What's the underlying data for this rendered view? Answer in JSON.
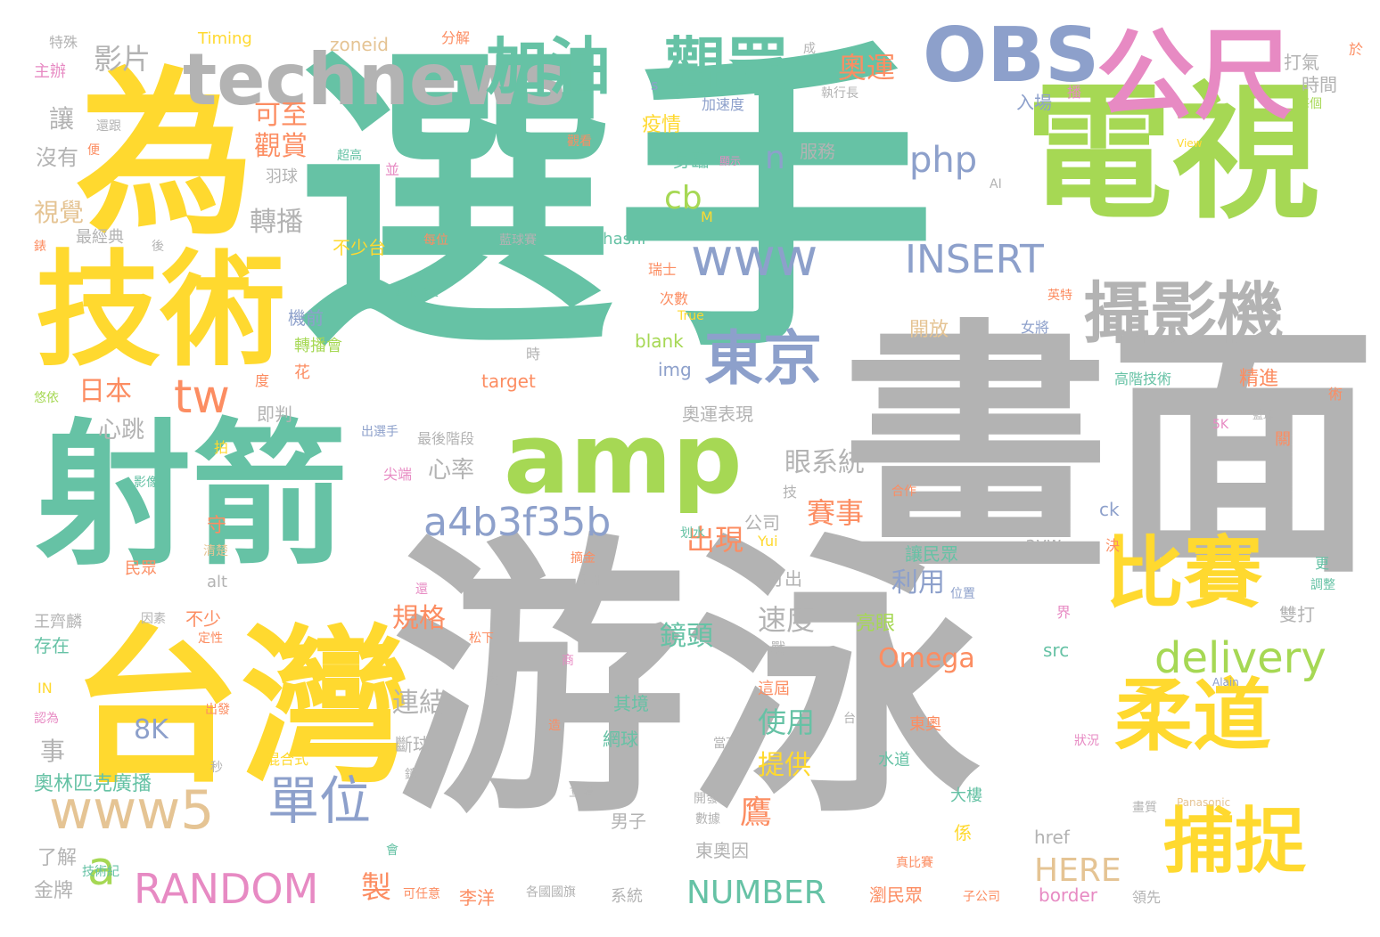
{
  "palette": {
    "teal": "#66c2a5",
    "orange": "#fc8d62",
    "blue": "#8da0cb",
    "pink": "#e78ac3",
    "green": "#a6d854",
    "yellow": "#ffd92f",
    "tan": "#e5c494",
    "gray": "#b3b3b3"
  },
  "words": [
    {
      "text": "選手",
      "color": "#66c2a5"
    },
    {
      "text": "游泳",
      "color": "#b3b3b3"
    },
    {
      "text": "畫面",
      "color": "#b3b3b3"
    },
    {
      "text": "射箭",
      "color": "#66c2a5"
    },
    {
      "text": "為",
      "color": "#ffd92f"
    },
    {
      "text": "電視",
      "color": "#a6d854"
    },
    {
      "text": "技術",
      "color": "#ffd92f"
    },
    {
      "text": "台灣",
      "color": "#ffd92f"
    },
    {
      "text": "amp",
      "color": "#a6d854"
    },
    {
      "text": "公尺",
      "color": "#e78ac3"
    },
    {
      "text": "technews",
      "color": "#b3b3b3"
    },
    {
      "text": "加油",
      "color": "#66c2a5"
    },
    {
      "text": "觀眾",
      "color": "#66c2a5"
    },
    {
      "text": "OBS",
      "color": "#8da0cb"
    },
    {
      "text": "攝影機",
      "color": "#b3b3b3"
    },
    {
      "text": "比賽",
      "color": "#ffd92f"
    },
    {
      "text": "柔道",
      "color": "#ffd92f"
    },
    {
      "text": "捕捉",
      "color": "#ffd92f"
    },
    {
      "text": "www",
      "color": "#8da0cb"
    },
    {
      "text": "東京",
      "color": "#8da0cb"
    },
    {
      "text": "www5",
      "color": "#e5c494"
    },
    {
      "text": "單位",
      "color": "#8da0cb"
    },
    {
      "text": "a4b3f35b",
      "color": "#8da0cb"
    },
    {
      "text": "delivery",
      "color": "#a6d854"
    },
    {
      "text": "RANDOM",
      "color": "#e78ac3"
    },
    {
      "text": "tw",
      "color": "#fc8d62"
    },
    {
      "text": "INSERT",
      "color": "#8da0cb"
    },
    {
      "text": "php",
      "color": "#8da0cb"
    },
    {
      "text": "奧運",
      "color": "#fc8d62"
    },
    {
      "text": "影片",
      "color": "#b3b3b3"
    },
    {
      "text": "眼系統",
      "color": "#b3b3b3"
    },
    {
      "text": "賽事",
      "color": "#fc8d62"
    },
    {
      "text": "Omega",
      "color": "#fc8d62"
    },
    {
      "text": "NUMBER",
      "color": "#66c2a5"
    },
    {
      "text": "HERE",
      "color": "#e5c494"
    },
    {
      "text": "a",
      "color": "#a6d854"
    },
    {
      "text": "cb",
      "color": "#a6d854"
    },
    {
      "text": "n",
      "color": "#8da0cb"
    },
    {
      "text": "日本",
      "color": "#fc8d62"
    },
    {
      "text": "轉播",
      "color": "#b3b3b3"
    },
    {
      "text": "出現",
      "color": "#fc8d62"
    },
    {
      "text": "規格",
      "color": "#fc8d62"
    },
    {
      "text": "鏡頭",
      "color": "#66c2a5"
    },
    {
      "text": "速度",
      "color": "#b3b3b3"
    },
    {
      "text": "使用",
      "color": "#66c2a5"
    },
    {
      "text": "連結",
      "color": "#b3b3b3"
    },
    {
      "text": "利用",
      "color": "#8da0cb"
    },
    {
      "text": "提供",
      "color": "#ffd92f"
    },
    {
      "text": "心率",
      "color": "#b3b3b3"
    },
    {
      "text": "心跳",
      "color": "#b3b3b3"
    },
    {
      "text": "8K",
      "color": "#8da0cb"
    },
    {
      "text": "可至",
      "color": "#fc8d62"
    },
    {
      "text": "觀賞",
      "color": "#fc8d62"
    },
    {
      "text": "視覺",
      "color": "#e5c494"
    },
    {
      "text": "讓",
      "color": "#b3b3b3"
    },
    {
      "text": "沒有",
      "color": "#b3b3b3"
    },
    {
      "text": "事",
      "color": "#b3b3b3"
    },
    {
      "text": "奧林匹克廣播",
      "color": "#66c2a5"
    },
    {
      "text": "了解",
      "color": "#b3b3b3"
    },
    {
      "text": "金牌",
      "color": "#b3b3b3"
    },
    {
      "text": "主辦",
      "color": "#e78ac3"
    },
    {
      "text": "特殊",
      "color": "#b3b3b3"
    },
    {
      "text": "Timing",
      "color": "#ffd92f"
    },
    {
      "text": "zoneid",
      "color": "#e5c494"
    },
    {
      "text": "分解",
      "color": "#fc8d62"
    },
    {
      "text": "疫情",
      "color": "#ffd92f"
    },
    {
      "text": "身臨",
      "color": "#66c2a5"
    },
    {
      "text": "服務",
      "color": "#b3b3b3"
    },
    {
      "text": "入場",
      "color": "#8da0cb"
    },
    {
      "text": "打氣",
      "color": "#b3b3b3"
    },
    {
      "text": "時間",
      "color": "#b3b3b3"
    },
    {
      "text": "不少台",
      "color": "#ffd92f"
    },
    {
      "text": "最經典",
      "color": "#b3b3b3"
    },
    {
      "text": "Ohashi",
      "color": "#66c2a5"
    },
    {
      "text": "羽球",
      "color": "#b3b3b3"
    },
    {
      "text": "機前",
      "color": "#8da0cb"
    },
    {
      "text": "轉播會",
      "color": "#a6d854"
    },
    {
      "text": "即判",
      "color": "#b3b3b3"
    },
    {
      "text": "target",
      "color": "#fc8d62"
    },
    {
      "text": "blank",
      "color": "#a6d854"
    },
    {
      "text": "img",
      "color": "#8da0cb"
    },
    {
      "text": "奧運表現",
      "color": "#b3b3b3"
    },
    {
      "text": "開放",
      "color": "#e5c494"
    },
    {
      "text": "精進",
      "color": "#fc8d62"
    },
    {
      "text": "高階技術",
      "color": "#66c2a5"
    },
    {
      "text": "守",
      "color": "#fc8d62"
    },
    {
      "text": "公司",
      "color": "#b3b3b3"
    },
    {
      "text": "打出",
      "color": "#b3b3b3"
    },
    {
      "text": "亮眼",
      "color": "#a6d854"
    },
    {
      "text": "讓民眾",
      "color": "#66c2a5"
    },
    {
      "text": "avw",
      "color": "#b3b3b3"
    },
    {
      "text": "ck",
      "color": "#8da0cb"
    },
    {
      "text": "src",
      "color": "#66c2a5"
    },
    {
      "text": "雙打",
      "color": "#b3b3b3"
    },
    {
      "text": "存在",
      "color": "#66c2a5"
    },
    {
      "text": "王齊麟",
      "color": "#b3b3b3"
    },
    {
      "text": "不少",
      "color": "#fc8d62"
    },
    {
      "text": "alt",
      "color": "#b3b3b3"
    },
    {
      "text": "民眾",
      "color": "#fc8d62"
    },
    {
      "text": "最後階段",
      "color": "#b3b3b3"
    },
    {
      "text": "尖端",
      "color": "#e78ac3"
    },
    {
      "text": "其境",
      "color": "#66c2a5"
    },
    {
      "text": "網球",
      "color": "#66c2a5"
    },
    {
      "text": "這屆",
      "color": "#fc8d62"
    },
    {
      "text": "東奧",
      "color": "#fc8d62"
    },
    {
      "text": "水道",
      "color": "#66c2a5"
    },
    {
      "text": "斷球",
      "color": "#b3b3b3"
    },
    {
      "text": "混合式",
      "color": "#ffd92f"
    },
    {
      "text": "男子",
      "color": "#b3b3b3"
    },
    {
      "text": "東奧因",
      "color": "#b3b3b3"
    },
    {
      "text": "大樓",
      "color": "#66c2a5"
    },
    {
      "text": "係",
      "color": "#ffd92f"
    },
    {
      "text": "href",
      "color": "#b3b3b3"
    },
    {
      "text": "border",
      "color": "#e78ac3"
    },
    {
      "text": "瀏民眾",
      "color": "#fc8d62"
    },
    {
      "text": "李洋",
      "color": "#fc8d62"
    },
    {
      "text": "系統",
      "color": "#b3b3b3"
    },
    {
      "text": "各國國旗",
      "color": "#b3b3b3"
    },
    {
      "text": "技術紀",
      "color": "#66c2a5"
    },
    {
      "text": "可任意",
      "color": "#fc8d62"
    },
    {
      "text": "子公司",
      "color": "#fc8d62"
    },
    {
      "text": "領先",
      "color": "#b3b3b3"
    },
    {
      "text": "製",
      "color": "#fc8d62"
    },
    {
      "text": "鷹",
      "color": "#fc8d62"
    },
    {
      "text": "花",
      "color": "#fc8d62"
    },
    {
      "text": "IN",
      "color": "#ffd92f"
    },
    {
      "text": "悠依",
      "color": "#a6d854"
    },
    {
      "text": "影像",
      "color": "#66c2a5"
    },
    {
      "text": "認為",
      "color": "#e78ac3"
    },
    {
      "text": "出發",
      "color": "#fc8d62"
    },
    {
      "text": "Yui",
      "color": "#ffd92f"
    },
    {
      "text": "摘金",
      "color": "#fc8d62"
    },
    {
      "text": "戰",
      "color": "#b3b3b3"
    },
    {
      "text": "界",
      "color": "#e78ac3"
    },
    {
      "text": "狀況",
      "color": "#e78ac3"
    },
    {
      "text": "更",
      "color": "#66c2a5"
    },
    {
      "text": "調整",
      "color": "#66c2a5"
    },
    {
      "text": "Alain",
      "color": "#8da0cb"
    },
    {
      "text": "Panasonic",
      "color": "#e5c494"
    },
    {
      "text": "5K",
      "color": "#e78ac3"
    },
    {
      "text": "藍球",
      "color": "#b3b3b3"
    },
    {
      "text": "關",
      "color": "#fc8d62"
    },
    {
      "text": "每個",
      "color": "#a6d854"
    },
    {
      "text": "View",
      "color": "#ffd92f"
    },
    {
      "text": "AI",
      "color": "#b3b3b3"
    },
    {
      "text": "英特",
      "color": "#fc8d62"
    },
    {
      "text": "女將",
      "color": "#8da0cb"
    },
    {
      "text": "瑞士",
      "color": "#fc8d62"
    },
    {
      "text": "次數",
      "color": "#fc8d62"
    },
    {
      "text": "True",
      "color": "#ffd92f"
    },
    {
      "text": "Zobrist",
      "color": "#66c2a5"
    },
    {
      "text": "每位",
      "color": "#fc8d62"
    },
    {
      "text": "藍球賽",
      "color": "#b3b3b3"
    },
    {
      "text": "超高",
      "color": "#66c2a5"
    },
    {
      "text": "並",
      "color": "#e78ac3"
    },
    {
      "text": "還跟",
      "color": "#b3b3b3"
    },
    {
      "text": "便",
      "color": "#fc8d62"
    },
    {
      "text": "後",
      "color": "#b3b3b3"
    },
    {
      "text": "錶",
      "color": "#fc8d62"
    },
    {
      "text": "執行長",
      "color": "#b3b3b3"
    },
    {
      "text": "加速度",
      "color": "#8da0cb"
    },
    {
      "text": "觀看",
      "color": "#fc8d62"
    },
    {
      "text": "顯示",
      "color": "#e78ac3"
    },
    {
      "text": "成",
      "color": "#b3b3b3"
    },
    {
      "text": "於",
      "color": "#fc8d62"
    },
    {
      "text": "播",
      "color": "#e78ac3"
    },
    {
      "text": "s",
      "color": "#8da0cb"
    },
    {
      "text": "M",
      "color": "#ffd92f"
    },
    {
      "text": "時",
      "color": "#b3b3b3"
    },
    {
      "text": "度",
      "color": "#fc8d62"
    },
    {
      "text": "術",
      "color": "#fc8d62"
    },
    {
      "text": "出選手",
      "color": "#8da0cb"
    },
    {
      "text": "拍",
      "color": "#ffd92f"
    },
    {
      "text": "技",
      "color": "#b3b3b3"
    },
    {
      "text": "合作",
      "color": "#fc8d62"
    },
    {
      "text": "划水",
      "color": "#66c2a5"
    },
    {
      "text": "清楚",
      "color": "#e5c494"
    },
    {
      "text": "決",
      "color": "#fc8d62"
    },
    {
      "text": "全部",
      "color": "#b3b3b3"
    },
    {
      "text": "還",
      "color": "#e78ac3"
    },
    {
      "text": "位置",
      "color": "#8da0cb"
    },
    {
      "text": "因素",
      "color": "#b3b3b3"
    },
    {
      "text": "定性",
      "color": "#fc8d62"
    },
    {
      "text": "松下",
      "color": "#fc8d62"
    },
    {
      "text": "商",
      "color": "#e78ac3"
    },
    {
      "text": "內",
      "color": "#b3b3b3"
    },
    {
      "text": "台",
      "color": "#b3b3b3"
    },
    {
      "text": "造",
      "color": "#fc8d62"
    },
    {
      "text": "當下",
      "color": "#b3b3b3"
    },
    {
      "text": "秒",
      "color": "#b3b3b3"
    },
    {
      "text": "鐘",
      "color": "#b3b3b3"
    },
    {
      "text": "開發",
      "color": "#b3b3b3"
    },
    {
      "text": "數據",
      "color": "#b3b3b3"
    },
    {
      "text": "立體",
      "color": "#b3b3b3"
    },
    {
      "text": "會",
      "color": "#66c2a5"
    },
    {
      "text": "畫質",
      "color": "#b3b3b3"
    },
    {
      "text": "真比賽",
      "color": "#fc8d62"
    }
  ]
}
